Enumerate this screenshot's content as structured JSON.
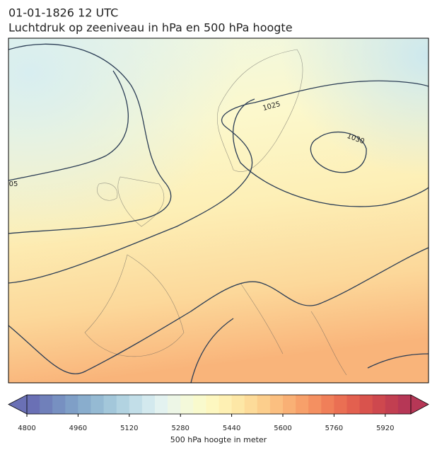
{
  "chart_data": {
    "type": "contour-map",
    "title": "01-01-1826 12 UTC",
    "subtitle": "Luchtdruk op zeeniveau in hPa en 500 hPa hoogte",
    "contour_labels": [
      "1025",
      "1030",
      "05"
    ],
    "colorbar": {
      "label": "500 hPa hoogte in meter",
      "lim": [
        4800,
        6000
      ],
      "ticks": [
        4800,
        4960,
        5120,
        5280,
        5440,
        5600,
        5760,
        5920
      ],
      "colors": [
        "#6a70b5",
        "#7080ba",
        "#7790c1",
        "#7f9fc7",
        "#89adcd",
        "#95bad3",
        "#a3c7da",
        "#b2d3e1",
        "#c2dee8",
        "#d3e9ee",
        "#e3f2f0",
        "#edf6e6",
        "#f4f9da",
        "#f9facd",
        "#fdf7c0",
        "#fef0b3",
        "#fde7a6",
        "#fddb99",
        "#fcce8c",
        "#fbbf80",
        "#f9b075",
        "#f7a06a",
        "#f49061",
        "#f07f59",
        "#ea6f53",
        "#e3604f",
        "#d9534d",
        "#ce484e",
        "#c23f51",
        "#b63756"
      ]
    }
  }
}
